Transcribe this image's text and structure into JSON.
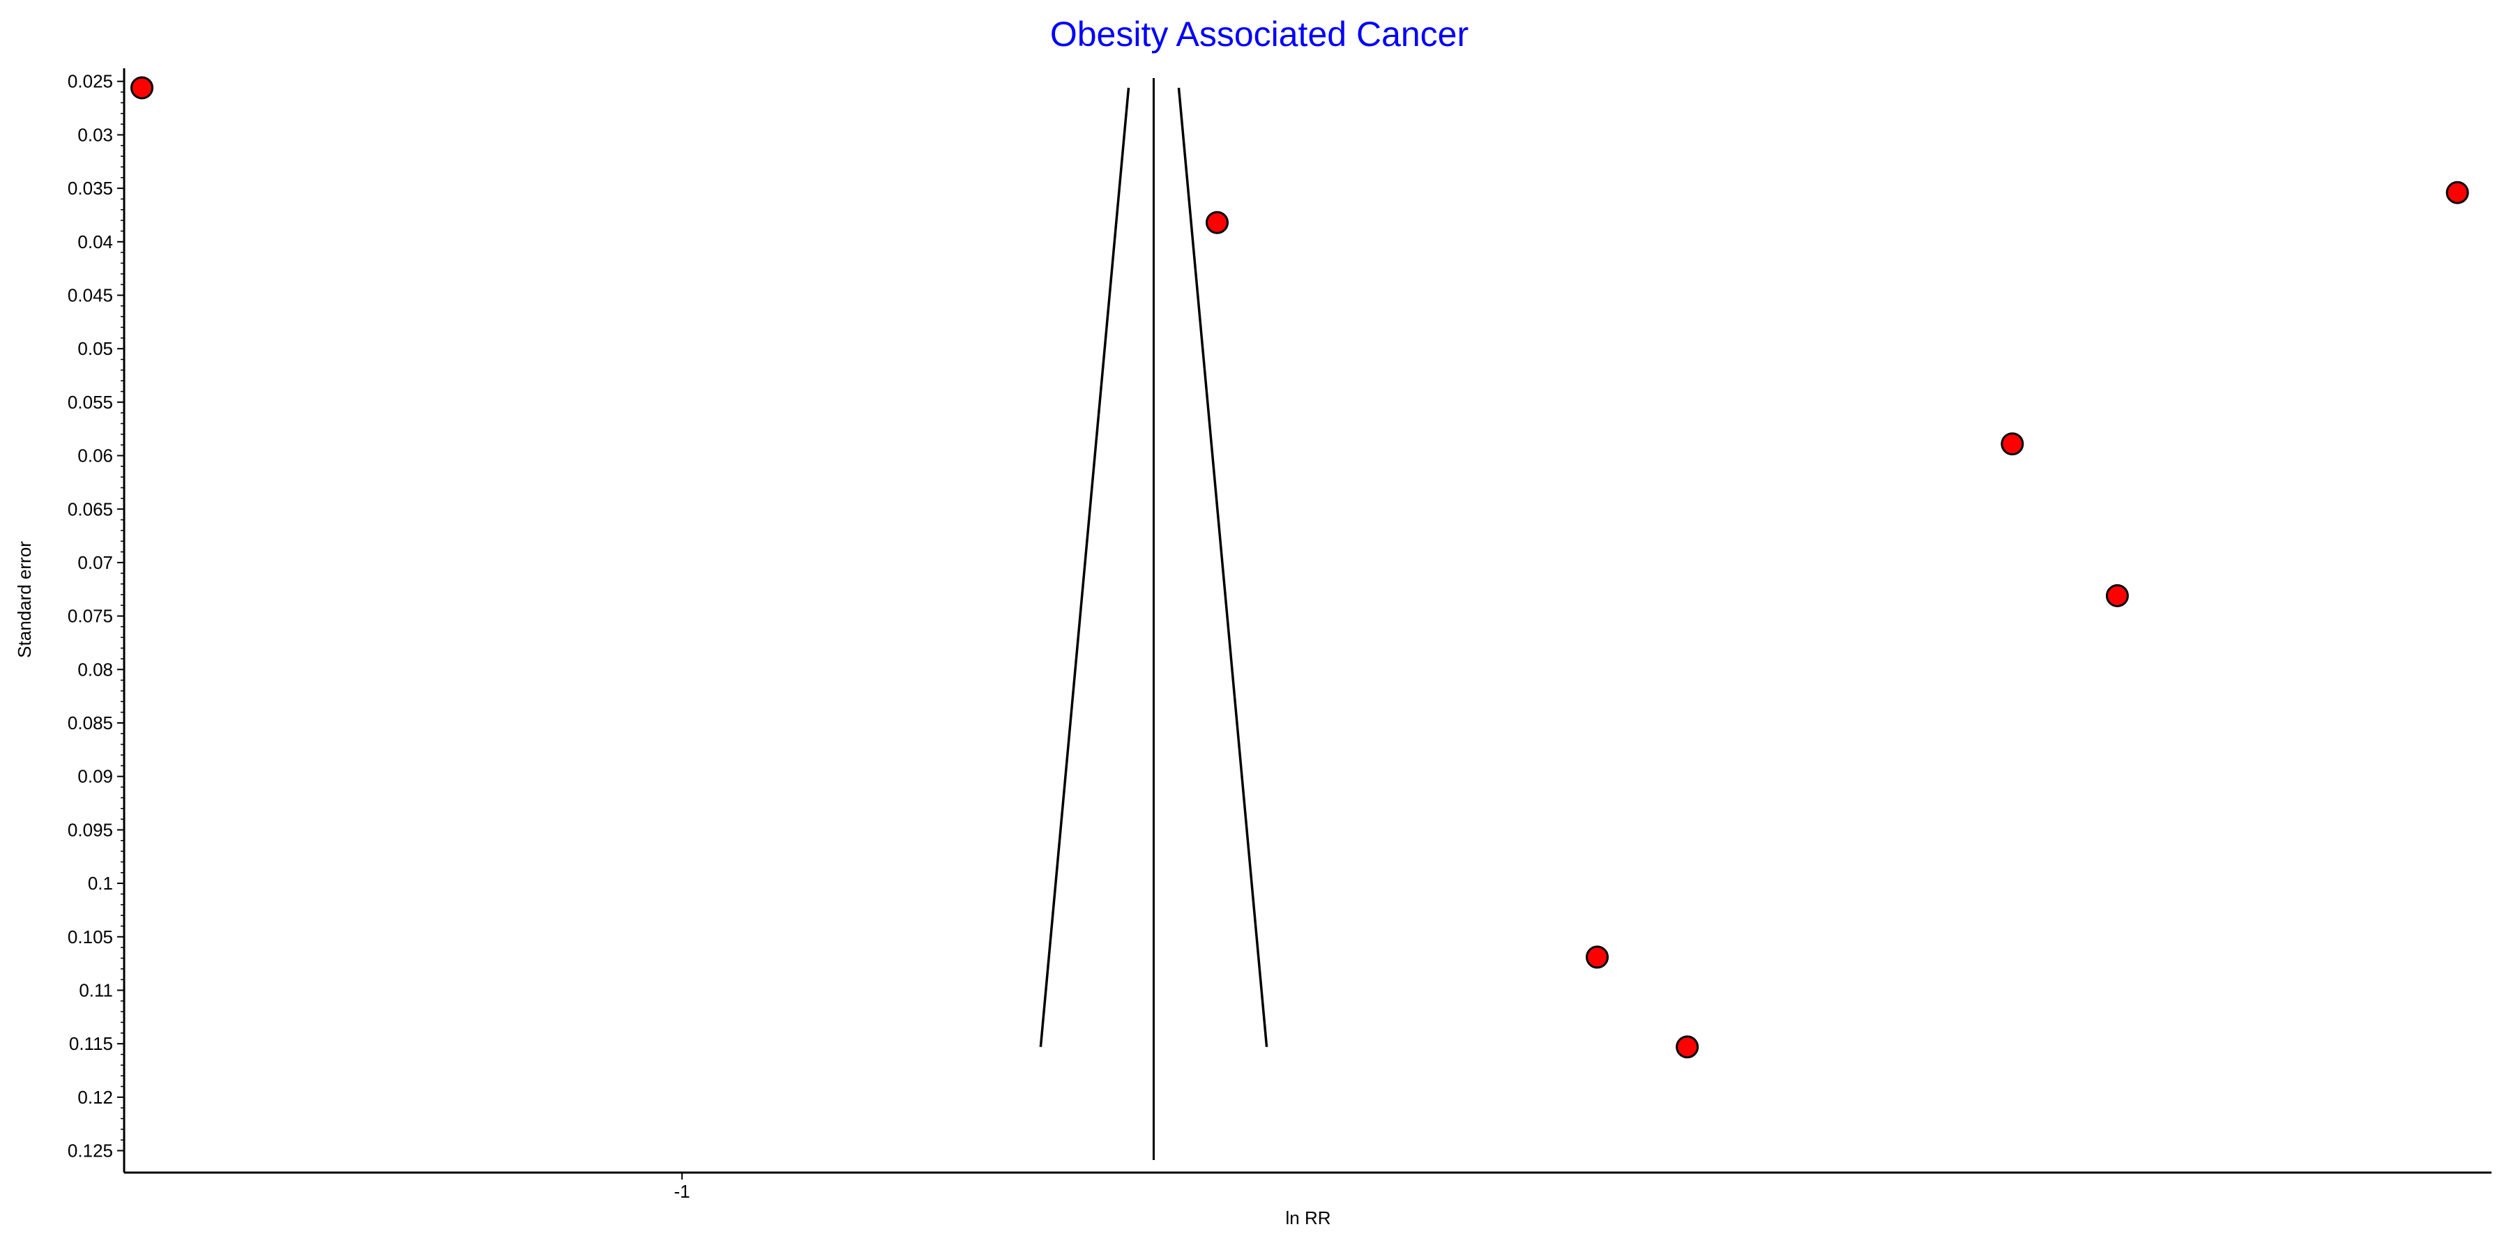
{
  "chart_data": {
    "type": "scatter",
    "title": "Obesity Associated Cancer",
    "xlabel": "ln RR",
    "ylabel": "Standard error",
    "x_ticks": [
      {
        "value": -1,
        "label": "-1"
      }
    ],
    "y_ticks": [
      {
        "value": 0.025,
        "label": "0.025"
      },
      {
        "value": 0.03,
        "label": "0.03"
      },
      {
        "value": 0.035,
        "label": "0.035"
      },
      {
        "value": 0.04,
        "label": "0.04"
      },
      {
        "value": 0.045,
        "label": "0.045"
      },
      {
        "value": 0.05,
        "label": "0.05"
      },
      {
        "value": 0.055,
        "label": "0.055"
      },
      {
        "value": 0.06,
        "label": "0.06"
      },
      {
        "value": 0.065,
        "label": "0.065"
      },
      {
        "value": 0.07,
        "label": "0.07"
      },
      {
        "value": 0.075,
        "label": "0.075"
      },
      {
        "value": 0.08,
        "label": "0.08"
      },
      {
        "value": 0.085,
        "label": "0.085"
      },
      {
        "value": 0.09,
        "label": "0.09"
      },
      {
        "value": 0.095,
        "label": "0.095"
      },
      {
        "value": 0.1,
        "label": "0.1"
      },
      {
        "value": 0.105,
        "label": "0.105"
      },
      {
        "value": 0.11,
        "label": "0.11"
      },
      {
        "value": 0.115,
        "label": "0.115"
      },
      {
        "value": 0.12,
        "label": "0.12"
      },
      {
        "value": 0.125,
        "label": "0.125"
      }
    ],
    "xlim": [
      -2.11,
      2.6
    ],
    "ylim": [
      0.0243,
      0.1264
    ],
    "y_inverted": true,
    "pooled_estimate": -0.0569,
    "funnel_se_range": [
      0.0256,
      0.1153
    ],
    "funnel_multiplier": 1.96,
    "points": [
      {
        "x": -2.08,
        "y": 0.0256
      },
      {
        "x": 0.07,
        "y": 0.0382
      },
      {
        "x": 2.55,
        "y": 0.0354
      },
      {
        "x": 1.66,
        "y": 0.0589
      },
      {
        "x": 1.87,
        "y": 0.0731
      },
      {
        "x": 0.83,
        "y": 0.1069
      },
      {
        "x": 1.01,
        "y": 0.1153
      }
    ],
    "grid": false,
    "colors": {
      "title": "#0000ff",
      "point_fill": "#ff0000",
      "point_stroke": "#000000",
      "axis": "#000000",
      "text": "#000000"
    }
  }
}
